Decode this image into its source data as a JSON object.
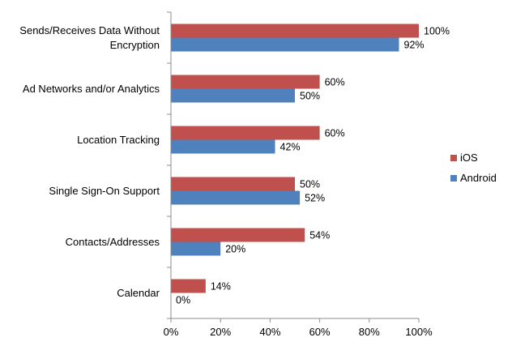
{
  "chart_data": {
    "type": "bar",
    "orientation": "horizontal",
    "title": "",
    "xlabel": "",
    "ylabel": "",
    "categories": [
      "Sends/Receives Data Without\nEncryption",
      "Ad Networks and/or Analytics",
      "Location Tracking",
      "Single Sign-On Support",
      "Contacts/Addresses",
      "Calendar"
    ],
    "series": [
      {
        "name": "iOS",
        "color": "#c0504d",
        "values": [
          100,
          60,
          60,
          50,
          54,
          14
        ]
      },
      {
        "name": "Android",
        "color": "#4f81bd",
        "values": [
          92,
          50,
          42,
          52,
          20,
          0
        ]
      }
    ],
    "xlim": [
      0,
      100
    ],
    "xticks": [
      0,
      20,
      40,
      60,
      80,
      100
    ],
    "value_format": "percent",
    "grid": false,
    "legend_position": "right"
  }
}
